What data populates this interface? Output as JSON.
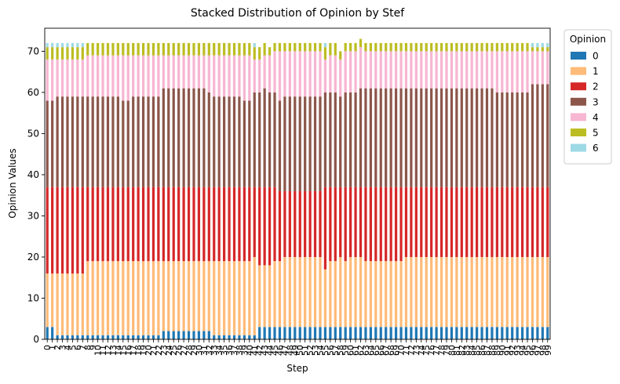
{
  "chart_data": {
    "type": "bar",
    "stacked": true,
    "title": "Stacked Distribution of Opinion by Stef",
    "xlabel": "Step",
    "ylabel": "Opinion Values",
    "ylim": [
      0,
      75.6
    ],
    "yticks": [
      0,
      10,
      20,
      30,
      40,
      50,
      60,
      70
    ],
    "x": [
      0,
      1,
      2,
      3,
      4,
      5,
      6,
      7,
      8,
      9,
      10,
      11,
      12,
      13,
      14,
      15,
      16,
      17,
      18,
      19,
      20,
      21,
      22,
      23,
      24,
      25,
      26,
      27,
      28,
      29,
      30,
      31,
      32,
      33,
      34,
      35,
      36,
      37,
      38,
      39,
      40,
      41,
      42,
      43,
      44,
      45,
      46,
      47,
      48,
      49,
      50,
      51,
      52,
      53,
      54,
      55,
      56,
      57,
      58,
      59,
      60,
      61,
      62,
      63,
      64,
      65,
      66,
      67,
      68,
      69,
      70,
      71,
      72,
      73,
      74,
      75,
      76,
      77,
      78,
      79,
      80,
      81,
      82,
      83,
      84,
      85,
      86,
      87,
      88,
      89,
      90,
      91,
      92,
      93,
      94,
      95,
      96,
      97,
      98,
      99
    ],
    "legend": {
      "title": "Opinion",
      "placement": "outside-right"
    },
    "colors": [
      "#1f77b4",
      "#ffbb78",
      "#d62728",
      "#8c564b",
      "#f7b6d2",
      "#bcbd22",
      "#9edae5"
    ],
    "series": [
      {
        "name": "0",
        "values": [
          3,
          3,
          1,
          1,
          1,
          1,
          1,
          1,
          1,
          1,
          1,
          1,
          1,
          1,
          1,
          1,
          1,
          1,
          1,
          1,
          1,
          1,
          1,
          2,
          2,
          2,
          2,
          2,
          2,
          2,
          2,
          2,
          2,
          1,
          1,
          1,
          1,
          1,
          1,
          1,
          1,
          1,
          3,
          3,
          3,
          3,
          3,
          3,
          3,
          3,
          3,
          3,
          3,
          3,
          3,
          3,
          3,
          3,
          3,
          3,
          3,
          3,
          3,
          3,
          3,
          3,
          3,
          3,
          3,
          3,
          3,
          3,
          3,
          3,
          3,
          3,
          3,
          3,
          3,
          3,
          3,
          3,
          3,
          3,
          3,
          3,
          3,
          3,
          3,
          3,
          3,
          3,
          3,
          3,
          3,
          3,
          3,
          3,
          3,
          3
        ]
      },
      {
        "name": "1",
        "values": [
          13,
          13,
          15,
          15,
          15,
          15,
          15,
          15,
          18,
          18,
          18,
          18,
          18,
          18,
          18,
          18,
          18,
          18,
          18,
          18,
          18,
          18,
          18,
          17,
          17,
          17,
          17,
          17,
          17,
          17,
          17,
          17,
          17,
          18,
          18,
          18,
          18,
          18,
          18,
          18,
          18,
          19,
          15,
          15,
          15,
          16,
          16,
          17,
          17,
          17,
          17,
          17,
          17,
          17,
          17,
          14,
          16,
          16,
          17,
          16,
          17,
          17,
          17,
          16,
          16,
          16,
          16,
          16,
          16,
          16,
          16,
          17,
          17,
          17,
          17,
          17,
          17,
          17,
          17,
          17,
          17,
          17,
          17,
          17,
          17,
          17,
          17,
          17,
          17,
          17,
          17,
          17,
          17,
          17,
          17,
          17,
          17,
          17,
          17,
          17
        ]
      },
      {
        "name": "2",
        "values": [
          21,
          21,
          21,
          21,
          21,
          21,
          21,
          21,
          18,
          18,
          18,
          18,
          18,
          18,
          18,
          18,
          18,
          18,
          18,
          18,
          18,
          18,
          18,
          18,
          18,
          18,
          18,
          18,
          18,
          18,
          18,
          18,
          18,
          18,
          18,
          18,
          18,
          18,
          18,
          18,
          18,
          17,
          19,
          19,
          19,
          18,
          17,
          16,
          16,
          16,
          16,
          16,
          16,
          16,
          16,
          20,
          18,
          18,
          17,
          18,
          17,
          17,
          17,
          18,
          18,
          18,
          18,
          18,
          18,
          18,
          18,
          17,
          17,
          17,
          17,
          17,
          17,
          17,
          17,
          17,
          17,
          17,
          17,
          17,
          17,
          17,
          17,
          17,
          17,
          17,
          17,
          17,
          17,
          17,
          17,
          17,
          17,
          17,
          17,
          17
        ]
      },
      {
        "name": "3",
        "values": [
          21,
          21,
          22,
          22,
          22,
          22,
          22,
          22,
          22,
          22,
          22,
          22,
          22,
          22,
          22,
          21,
          21,
          22,
          22,
          22,
          22,
          22,
          22,
          24,
          24,
          24,
          24,
          24,
          24,
          24,
          24,
          24,
          23,
          22,
          22,
          22,
          22,
          22,
          22,
          21,
          21,
          23,
          23,
          24,
          23,
          23,
          22,
          23,
          23,
          23,
          23,
          23,
          23,
          23,
          23,
          23,
          23,
          23,
          22,
          23,
          23,
          23,
          24,
          24,
          24,
          24,
          24,
          24,
          24,
          24,
          24,
          24,
          24,
          24,
          24,
          24,
          24,
          24,
          24,
          24,
          24,
          24,
          24,
          24,
          24,
          24,
          24,
          24,
          24,
          23,
          23,
          23,
          23,
          23,
          23,
          23,
          25,
          25,
          25,
          25
        ]
      },
      {
        "name": "4",
        "values": [
          10,
          10,
          9,
          9,
          9,
          9,
          9,
          9,
          10,
          10,
          10,
          10,
          10,
          10,
          10,
          11,
          11,
          10,
          10,
          10,
          10,
          10,
          10,
          8,
          8,
          8,
          8,
          8,
          8,
          8,
          8,
          8,
          9,
          10,
          10,
          10,
          10,
          10,
          10,
          11,
          11,
          8,
          8,
          8,
          9,
          10,
          12,
          11,
          11,
          11,
          11,
          11,
          11,
          11,
          11,
          8,
          9,
          9,
          9,
          10,
          10,
          10,
          10,
          9,
          9,
          9,
          9,
          9,
          9,
          9,
          9,
          9,
          9,
          9,
          9,
          9,
          9,
          9,
          9,
          9,
          9,
          9,
          9,
          9,
          9,
          9,
          9,
          9,
          9,
          10,
          10,
          10,
          10,
          10,
          10,
          10,
          8,
          8,
          8,
          8
        ]
      },
      {
        "name": "5",
        "values": [
          3,
          3,
          3,
          3,
          3,
          3,
          3,
          3,
          3,
          3,
          3,
          3,
          3,
          3,
          3,
          3,
          3,
          3,
          3,
          3,
          3,
          3,
          3,
          3,
          3,
          3,
          3,
          3,
          3,
          3,
          3,
          3,
          3,
          3,
          3,
          3,
          3,
          3,
          3,
          3,
          3,
          3,
          3,
          3,
          2,
          2,
          2,
          2,
          2,
          2,
          2,
          2,
          2,
          2,
          2,
          3,
          3,
          3,
          2,
          2,
          2,
          2,
          2,
          2,
          2,
          2,
          2,
          2,
          2,
          2,
          2,
          2,
          2,
          2,
          2,
          2,
          2,
          2,
          2,
          2,
          2,
          2,
          2,
          2,
          2,
          2,
          2,
          2,
          2,
          2,
          2,
          2,
          2,
          2,
          2,
          2,
          1,
          1,
          1,
          1
        ]
      },
      {
        "name": "6",
        "values": [
          1,
          1,
          1,
          1,
          1,
          1,
          1,
          1,
          0,
          0,
          0,
          0,
          0,
          0,
          0,
          0,
          0,
          0,
          0,
          0,
          0,
          0,
          0,
          0,
          0,
          0,
          0,
          0,
          0,
          0,
          0,
          0,
          0,
          0,
          0,
          0,
          0,
          0,
          0,
          0,
          0,
          1,
          0,
          0,
          0,
          0,
          0,
          0,
          0,
          0,
          0,
          0,
          0,
          0,
          0,
          1,
          0,
          0,
          0,
          0,
          0,
          0,
          0,
          0,
          0,
          0,
          0,
          0,
          0,
          0,
          0,
          0,
          0,
          0,
          0,
          0,
          0,
          0,
          0,
          0,
          0,
          0,
          0,
          0,
          0,
          0,
          0,
          0,
          0,
          0,
          0,
          0,
          0,
          0,
          0,
          0,
          1,
          1,
          1,
          1
        ]
      }
    ]
  }
}
